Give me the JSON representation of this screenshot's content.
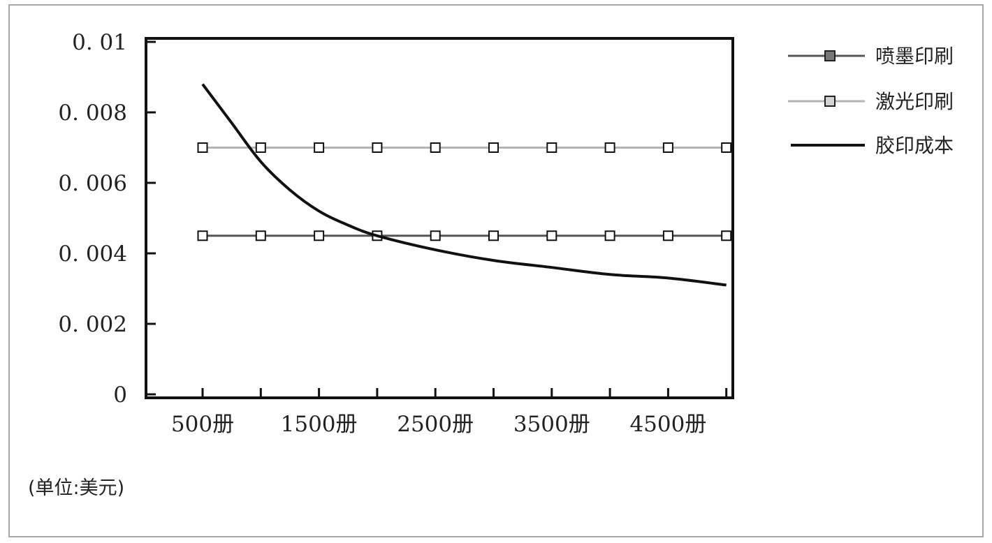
{
  "chart_data": {
    "type": "line",
    "title": "",
    "xlabel": "",
    "ylabel": "",
    "unit_note": "(单位:美元)",
    "x_points": [
      500,
      1000,
      1500,
      2000,
      2500,
      3000,
      3500,
      4000,
      4500,
      5000
    ],
    "x_tick_labels": [
      "500册",
      "1500册",
      "2500册",
      "3500册",
      "4500册"
    ],
    "x_tick_label_values": [
      500,
      1500,
      2500,
      3500,
      4500
    ],
    "y_ticks": [
      0,
      0.002,
      0.004,
      0.006,
      0.008,
      0.01
    ],
    "y_tick_labels": [
      "0",
      "0. 002",
      "0. 004",
      "0. 006",
      "0. 008",
      "0. 01"
    ],
    "ylim": [
      0,
      0.01
    ],
    "grid": false,
    "legend_position": "right",
    "series": [
      {
        "name": "喷墨印刷",
        "marker": "square",
        "color": "#555555",
        "marker_fill": "#777777",
        "line_width": 3,
        "x": [
          500,
          1000,
          1500,
          2000,
          2500,
          3000,
          3500,
          4000,
          4500,
          5000
        ],
        "values": [
          0.0045,
          0.0045,
          0.0045,
          0.0045,
          0.0045,
          0.0045,
          0.0045,
          0.0045,
          0.0045,
          0.0045
        ]
      },
      {
        "name": "激光印刷",
        "marker": "square",
        "color": "#b4b4b4",
        "marker_fill": "#d4d4d4",
        "line_width": 3,
        "x": [
          500,
          1000,
          1500,
          2000,
          2500,
          3000,
          3500,
          4000,
          4500,
          5000
        ],
        "values": [
          0.007,
          0.007,
          0.007,
          0.007,
          0.007,
          0.007,
          0.007,
          0.007,
          0.007,
          0.007
        ]
      },
      {
        "name": "胶印成本",
        "marker": "none",
        "color": "#111111",
        "line_width": 4,
        "x": [
          500,
          750,
          1000,
          1250,
          1500,
          1750,
          2000,
          2500,
          3000,
          3500,
          4000,
          4500,
          5000
        ],
        "values": [
          0.0088,
          0.0077,
          0.0066,
          0.0058,
          0.0052,
          0.0048,
          0.0045,
          0.0041,
          0.0038,
          0.0036,
          0.0034,
          0.0033,
          0.0031
        ]
      }
    ]
  }
}
